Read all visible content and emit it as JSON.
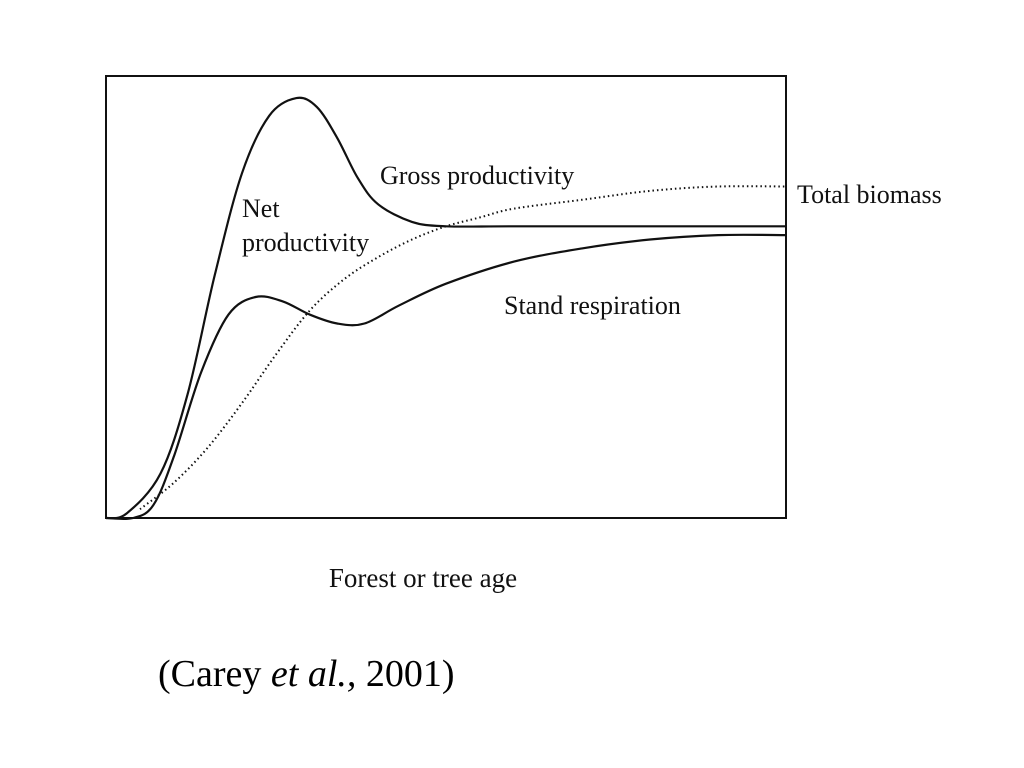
{
  "chart_data": {
    "type": "line",
    "title": "",
    "xlabel": "Forest or tree age",
    "ylabel": "",
    "xlim": [
      0,
      100
    ],
    "ylim": [
      0,
      100
    ],
    "grid": false,
    "legend": "none",
    "series": [
      {
        "name": "Gross productivity",
        "style": "solid",
        "points": [
          [
            0,
            0
          ],
          [
            3,
            1
          ],
          [
            8,
            10
          ],
          [
            12,
            28
          ],
          [
            16,
            55
          ],
          [
            20,
            78
          ],
          [
            24,
            91
          ],
          [
            28,
            95
          ],
          [
            31,
            93
          ],
          [
            34,
            86
          ],
          [
            37,
            77
          ],
          [
            40,
            71
          ],
          [
            45,
            67
          ],
          [
            50,
            66
          ],
          [
            60,
            66
          ],
          [
            80,
            66
          ],
          [
            100,
            66
          ]
        ]
      },
      {
        "name": "Stand respiration",
        "style": "solid",
        "points": [
          [
            0,
            0
          ],
          [
            4,
            0
          ],
          [
            7,
            3
          ],
          [
            10,
            14
          ],
          [
            14,
            33
          ],
          [
            18,
            46
          ],
          [
            22,
            50
          ],
          [
            26,
            49
          ],
          [
            30,
            46
          ],
          [
            34,
            44
          ],
          [
            38,
            44
          ],
          [
            43,
            48
          ],
          [
            50,
            53
          ],
          [
            60,
            58
          ],
          [
            70,
            61
          ],
          [
            80,
            63
          ],
          [
            90,
            64
          ],
          [
            100,
            64
          ]
        ]
      },
      {
        "name": "Total biomass",
        "style": "dotted",
        "points": [
          [
            5,
            2
          ],
          [
            10,
            8
          ],
          [
            15,
            16
          ],
          [
            20,
            26
          ],
          [
            25,
            37
          ],
          [
            30,
            47
          ],
          [
            35,
            54
          ],
          [
            40,
            59
          ],
          [
            45,
            63
          ],
          [
            50,
            66
          ],
          [
            55,
            68
          ],
          [
            60,
            70
          ],
          [
            70,
            72
          ],
          [
            80,
            74
          ],
          [
            90,
            75
          ],
          [
            100,
            75
          ]
        ]
      }
    ],
    "annotations": {
      "gross": "Gross productivity",
      "net_line1": "Net",
      "net_line2": "productivity",
      "respiration": "Stand  respiration",
      "biomass": "Total biomass"
    }
  },
  "citation": {
    "open": "(Carey ",
    "etal": "et al.,",
    "rest": " 2001)"
  }
}
